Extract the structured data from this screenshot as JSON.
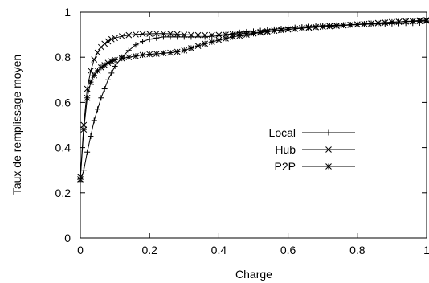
{
  "chart_data": {
    "type": "line",
    "title": "",
    "xlabel": "Charge",
    "ylabel": "Taux de remplissage moyen",
    "xlim": [
      0,
      1
    ],
    "ylim": [
      0,
      1
    ],
    "xticks": [
      "0",
      "0.2",
      "0.4",
      "0.6",
      "0.8",
      "1"
    ],
    "yticks": [
      "0",
      "0.2",
      "0.4",
      "0.6",
      "0.8",
      "1"
    ],
    "grid": false,
    "legend_position": "center-right",
    "series": [
      {
        "name": "Local",
        "marker": "plus",
        "x": [
          0,
          0.01,
          0.02,
          0.03,
          0.04,
          0.05,
          0.06,
          0.07,
          0.08,
          0.09,
          0.1,
          0.12,
          0.14,
          0.16,
          0.18,
          0.2,
          0.22,
          0.24,
          0.26,
          0.28,
          0.3,
          0.32,
          0.34,
          0.36,
          0.38,
          0.4,
          0.42,
          0.44,
          0.46,
          0.48,
          0.5,
          0.52,
          0.54,
          0.56,
          0.58,
          0.6,
          0.62,
          0.64,
          0.66,
          0.68,
          0.7,
          0.72,
          0.74,
          0.76,
          0.78,
          0.8,
          0.82,
          0.84,
          0.86,
          0.88,
          0.9,
          0.92,
          0.94,
          0.96,
          0.98,
          1.0
        ],
        "y": [
          0.25,
          0.3,
          0.38,
          0.45,
          0.52,
          0.57,
          0.62,
          0.66,
          0.7,
          0.73,
          0.76,
          0.8,
          0.83,
          0.855,
          0.87,
          0.88,
          0.885,
          0.89,
          0.89,
          0.89,
          0.89,
          0.89,
          0.89,
          0.89,
          0.893,
          0.895,
          0.9,
          0.905,
          0.91,
          0.913,
          0.915,
          0.918,
          0.921,
          0.924,
          0.927,
          0.93,
          0.932,
          0.934,
          0.936,
          0.938,
          0.94,
          0.941,
          0.942,
          0.943,
          0.944,
          0.945,
          0.946,
          0.947,
          0.948,
          0.948,
          0.949,
          0.95,
          0.951,
          0.951,
          0.952,
          0.953
        ]
      },
      {
        "name": "Hub",
        "marker": "cross",
        "x": [
          0,
          0.01,
          0.02,
          0.03,
          0.04,
          0.05,
          0.06,
          0.07,
          0.08,
          0.09,
          0.1,
          0.12,
          0.14,
          0.16,
          0.18,
          0.2,
          0.22,
          0.24,
          0.26,
          0.28,
          0.3,
          0.32,
          0.34,
          0.36,
          0.38,
          0.4,
          0.42,
          0.44,
          0.46,
          0.48,
          0.5,
          0.52,
          0.54,
          0.56,
          0.58,
          0.6,
          0.62,
          0.64,
          0.66,
          0.68,
          0.7,
          0.72,
          0.74,
          0.76,
          0.78,
          0.8,
          0.82,
          0.84,
          0.86,
          0.88,
          0.9,
          0.92,
          0.94,
          0.96,
          0.98,
          1.0
        ],
        "y": [
          0.27,
          0.5,
          0.66,
          0.74,
          0.79,
          0.82,
          0.845,
          0.86,
          0.87,
          0.88,
          0.885,
          0.893,
          0.898,
          0.901,
          0.903,
          0.904,
          0.905,
          0.905,
          0.904,
          0.902,
          0.9,
          0.899,
          0.898,
          0.898,
          0.898,
          0.899,
          0.9,
          0.902,
          0.904,
          0.906,
          0.908,
          0.912,
          0.915,
          0.918,
          0.921,
          0.924,
          0.926,
          0.929,
          0.931,
          0.933,
          0.935,
          0.937,
          0.939,
          0.941,
          0.943,
          0.945,
          0.947,
          0.949,
          0.951,
          0.953,
          0.955,
          0.957,
          0.959,
          0.961,
          0.963,
          0.965
        ]
      },
      {
        "name": "P2P",
        "marker": "star",
        "x": [
          0,
          0.01,
          0.02,
          0.03,
          0.04,
          0.05,
          0.06,
          0.07,
          0.08,
          0.09,
          0.1,
          0.12,
          0.14,
          0.16,
          0.18,
          0.2,
          0.22,
          0.24,
          0.26,
          0.28,
          0.3,
          0.32,
          0.34,
          0.36,
          0.38,
          0.4,
          0.42,
          0.44,
          0.46,
          0.48,
          0.5,
          0.52,
          0.54,
          0.56,
          0.58,
          0.6,
          0.62,
          0.64,
          0.66,
          0.68,
          0.7,
          0.72,
          0.74,
          0.76,
          0.78,
          0.8,
          0.82,
          0.84,
          0.86,
          0.88,
          0.9,
          0.92,
          0.94,
          0.96,
          0.98,
          1.0
        ],
        "y": [
          0.26,
          0.48,
          0.62,
          0.69,
          0.72,
          0.74,
          0.755,
          0.765,
          0.775,
          0.782,
          0.788,
          0.795,
          0.8,
          0.805,
          0.81,
          0.813,
          0.815,
          0.818,
          0.82,
          0.824,
          0.83,
          0.84,
          0.85,
          0.86,
          0.868,
          0.876,
          0.883,
          0.89,
          0.895,
          0.9,
          0.905,
          0.909,
          0.913,
          0.917,
          0.92,
          0.923,
          0.926,
          0.929,
          0.932,
          0.934,
          0.936,
          0.938,
          0.94,
          0.942,
          0.944,
          0.946,
          0.948,
          0.95,
          0.952,
          0.954,
          0.956,
          0.957,
          0.958,
          0.959,
          0.96,
          0.961
        ]
      }
    ]
  }
}
